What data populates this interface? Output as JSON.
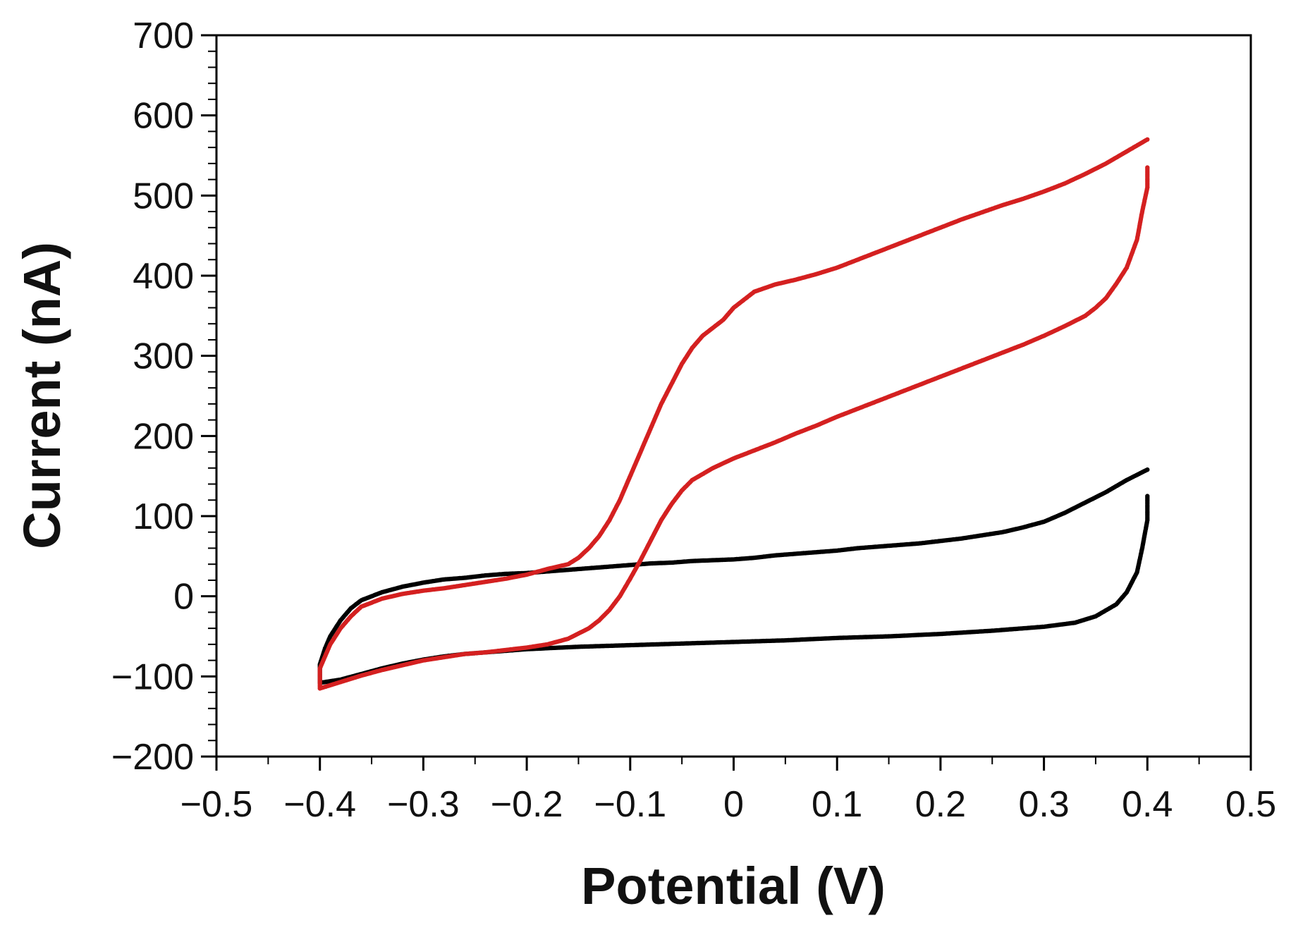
{
  "chart_data": {
    "type": "scatter",
    "title": "",
    "xlabel": "Potential (V)",
    "ylabel": "Current (nA)",
    "xlim": [
      -0.5,
      0.5
    ],
    "ylim": [
      -200,
      700
    ],
    "x_major_ticks": [
      -0.5,
      -0.4,
      -0.3,
      -0.2,
      -0.1,
      0,
      0.1,
      0.2,
      0.3,
      0.4,
      0.5
    ],
    "x_tick_labels": [
      "−0.5",
      "−0.4",
      "−0.3",
      "−0.2",
      "−0.1",
      "0",
      "0.1",
      "0.2",
      "0.3",
      "0.4",
      "0.5"
    ],
    "y_major_ticks": [
      -200,
      -100,
      0,
      100,
      200,
      300,
      400,
      500,
      600,
      700
    ],
    "y_tick_labels": [
      "−200",
      "−100",
      "0",
      "100",
      "200",
      "300",
      "400",
      "500",
      "600",
      "700"
    ],
    "grid": false,
    "legend": "none",
    "series": [
      {
        "name": "black",
        "color": "#000000",
        "points": [
          [
            0.4,
            158
          ],
          [
            0.38,
            145
          ],
          [
            0.36,
            130
          ],
          [
            0.34,
            117
          ],
          [
            0.32,
            104
          ],
          [
            0.3,
            93
          ],
          [
            0.28,
            86
          ],
          [
            0.26,
            80
          ],
          [
            0.24,
            76
          ],
          [
            0.22,
            72
          ],
          [
            0.2,
            69
          ],
          [
            0.18,
            66
          ],
          [
            0.16,
            64
          ],
          [
            0.14,
            62
          ],
          [
            0.12,
            60
          ],
          [
            0.1,
            57
          ],
          [
            0.08,
            55
          ],
          [
            0.06,
            53
          ],
          [
            0.04,
            51
          ],
          [
            0.02,
            48
          ],
          [
            0.0,
            46
          ],
          [
            -0.02,
            45
          ],
          [
            -0.04,
            44
          ],
          [
            -0.06,
            42
          ],
          [
            -0.08,
            41
          ],
          [
            -0.1,
            39
          ],
          [
            -0.12,
            37
          ],
          [
            -0.14,
            35
          ],
          [
            -0.16,
            33
          ],
          [
            -0.18,
            31
          ],
          [
            -0.2,
            29
          ],
          [
            -0.22,
            28
          ],
          [
            -0.24,
            26
          ],
          [
            -0.26,
            23
          ],
          [
            -0.28,
            21
          ],
          [
            -0.3,
            17
          ],
          [
            -0.32,
            12
          ],
          [
            -0.34,
            5
          ],
          [
            -0.36,
            -5
          ],
          [
            -0.37,
            -15
          ],
          [
            -0.38,
            -30
          ],
          [
            -0.39,
            -50
          ],
          [
            -0.395,
            -65
          ],
          [
            -0.4,
            -85
          ],
          [
            -0.4,
            -108
          ],
          [
            -0.38,
            -104
          ],
          [
            -0.36,
            -97
          ],
          [
            -0.34,
            -90
          ],
          [
            -0.32,
            -84
          ],
          [
            -0.3,
            -79
          ],
          [
            -0.28,
            -75
          ],
          [
            -0.26,
            -72
          ],
          [
            -0.24,
            -70
          ],
          [
            -0.22,
            -68
          ],
          [
            -0.2,
            -66
          ],
          [
            -0.15,
            -63
          ],
          [
            -0.1,
            -61
          ],
          [
            -0.05,
            -59
          ],
          [
            0.0,
            -57
          ],
          [
            0.05,
            -55
          ],
          [
            0.1,
            -52
          ],
          [
            0.15,
            -50
          ],
          [
            0.2,
            -47
          ],
          [
            0.25,
            -43
          ],
          [
            0.3,
            -38
          ],
          [
            0.33,
            -33
          ],
          [
            0.35,
            -25
          ],
          [
            0.37,
            -10
          ],
          [
            0.38,
            5
          ],
          [
            0.39,
            30
          ],
          [
            0.395,
            60
          ],
          [
            0.4,
            95
          ],
          [
            0.4,
            125
          ]
        ]
      },
      {
        "name": "red",
        "color": "#d42020",
        "points": [
          [
            0.4,
            570
          ],
          [
            0.38,
            555
          ],
          [
            0.36,
            540
          ],
          [
            0.34,
            527
          ],
          [
            0.32,
            515
          ],
          [
            0.3,
            505
          ],
          [
            0.28,
            496
          ],
          [
            0.26,
            488
          ],
          [
            0.24,
            479
          ],
          [
            0.22,
            470
          ],
          [
            0.2,
            460
          ],
          [
            0.18,
            450
          ],
          [
            0.16,
            440
          ],
          [
            0.14,
            430
          ],
          [
            0.12,
            420
          ],
          [
            0.1,
            410
          ],
          [
            0.08,
            402
          ],
          [
            0.06,
            395
          ],
          [
            0.04,
            389
          ],
          [
            0.02,
            380
          ],
          [
            0.0,
            360
          ],
          [
            -0.01,
            345
          ],
          [
            -0.02,
            335
          ],
          [
            -0.03,
            325
          ],
          [
            -0.04,
            310
          ],
          [
            -0.05,
            290
          ],
          [
            -0.06,
            265
          ],
          [
            -0.07,
            240
          ],
          [
            -0.08,
            210
          ],
          [
            -0.09,
            180
          ],
          [
            -0.1,
            150
          ],
          [
            -0.11,
            120
          ],
          [
            -0.12,
            95
          ],
          [
            -0.13,
            75
          ],
          [
            -0.14,
            60
          ],
          [
            -0.15,
            48
          ],
          [
            -0.16,
            40
          ],
          [
            -0.18,
            34
          ],
          [
            -0.2,
            27
          ],
          [
            -0.22,
            22
          ],
          [
            -0.24,
            18
          ],
          [
            -0.26,
            14
          ],
          [
            -0.28,
            10
          ],
          [
            -0.3,
            7
          ],
          [
            -0.32,
            3
          ],
          [
            -0.34,
            -3
          ],
          [
            -0.36,
            -13
          ],
          [
            -0.37,
            -25
          ],
          [
            -0.38,
            -40
          ],
          [
            -0.39,
            -60
          ],
          [
            -0.4,
            -90
          ],
          [
            -0.4,
            -115
          ],
          [
            -0.38,
            -107
          ],
          [
            -0.36,
            -99
          ],
          [
            -0.34,
            -92
          ],
          [
            -0.32,
            -86
          ],
          [
            -0.3,
            -80
          ],
          [
            -0.28,
            -76
          ],
          [
            -0.26,
            -72
          ],
          [
            -0.24,
            -70
          ],
          [
            -0.22,
            -67
          ],
          [
            -0.2,
            -64
          ],
          [
            -0.18,
            -60
          ],
          [
            -0.16,
            -53
          ],
          [
            -0.14,
            -40
          ],
          [
            -0.13,
            -30
          ],
          [
            -0.12,
            -17
          ],
          [
            -0.11,
            0
          ],
          [
            -0.1,
            22
          ],
          [
            -0.09,
            45
          ],
          [
            -0.08,
            70
          ],
          [
            -0.07,
            95
          ],
          [
            -0.06,
            115
          ],
          [
            -0.05,
            132
          ],
          [
            -0.04,
            145
          ],
          [
            -0.02,
            160
          ],
          [
            0.0,
            172
          ],
          [
            0.02,
            182
          ],
          [
            0.04,
            192
          ],
          [
            0.06,
            203
          ],
          [
            0.08,
            213
          ],
          [
            0.1,
            224
          ],
          [
            0.12,
            234
          ],
          [
            0.14,
            244
          ],
          [
            0.16,
            254
          ],
          [
            0.18,
            264
          ],
          [
            0.2,
            274
          ],
          [
            0.22,
            284
          ],
          [
            0.24,
            294
          ],
          [
            0.26,
            304
          ],
          [
            0.28,
            314
          ],
          [
            0.3,
            325
          ],
          [
            0.32,
            337
          ],
          [
            0.34,
            350
          ],
          [
            0.35,
            360
          ],
          [
            0.36,
            372
          ],
          [
            0.37,
            390
          ],
          [
            0.38,
            410
          ],
          [
            0.39,
            445
          ],
          [
            0.395,
            480
          ],
          [
            0.4,
            510
          ],
          [
            0.4,
            535
          ]
        ]
      }
    ]
  }
}
